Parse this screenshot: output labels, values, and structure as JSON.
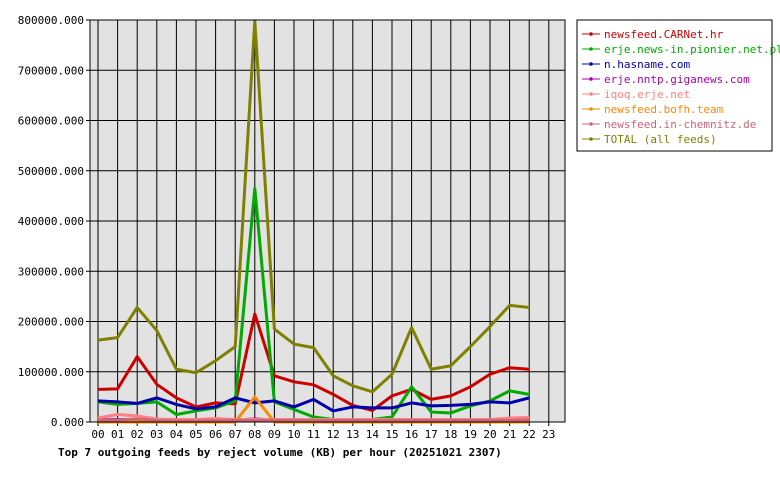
{
  "chart_data": {
    "type": "line",
    "caption": "Top 7 outgoing feeds by reject volume (KB) per hour (20251021 2307)",
    "categories": [
      "00",
      "01",
      "02",
      "03",
      "04",
      "05",
      "06",
      "07",
      "08",
      "09",
      "10",
      "11",
      "12",
      "13",
      "14",
      "15",
      "16",
      "17",
      "18",
      "19",
      "20",
      "21",
      "22",
      "23"
    ],
    "y_tick_labels": [
      "0.000",
      "100000.000",
      "200000.000",
      "300000.000",
      "400000.000",
      "500000.000",
      "600000.000",
      "700000.000",
      "800000.000"
    ],
    "ylim": [
      0,
      800000
    ],
    "grid": true,
    "legend_position": "right",
    "series": [
      {
        "name": "newsfeed.CARNet.hr",
        "color": "#cc0000",
        "values": [
          65000,
          66000,
          130000,
          75000,
          48000,
          30000,
          38000,
          36000,
          215000,
          92000,
          80000,
          74000,
          55000,
          33000,
          23000,
          52000,
          65000,
          45000,
          52000,
          70000,
          95000,
          108000,
          105000,
          null
        ]
      },
      {
        "name": "erje.news-in.pionier.net.pl",
        "color": "#00aa00",
        "values": [
          40000,
          35000,
          37000,
          40000,
          15000,
          22000,
          28000,
          42000,
          465000,
          40000,
          25000,
          10000,
          5000,
          5000,
          5000,
          10000,
          70000,
          20000,
          18000,
          32000,
          42000,
          62000,
          55000,
          null
        ]
      },
      {
        "name": "n.hasname.com",
        "color": "#0000aa",
        "values": [
          42000,
          40000,
          37000,
          48000,
          35000,
          26000,
          30000,
          48000,
          38000,
          42000,
          30000,
          45000,
          22000,
          30000,
          28000,
          28000,
          38000,
          32000,
          33000,
          35000,
          40000,
          38000,
          48000,
          null
        ]
      },
      {
        "name": "erje.nntp.giganews.com",
        "color": "#aa00aa",
        "values": [
          4000,
          5000,
          4000,
          4000,
          4000,
          4000,
          4000,
          4000,
          6000,
          4000,
          4000,
          4000,
          4000,
          4000,
          4000,
          4000,
          5000,
          4000,
          4000,
          4000,
          5000,
          5000,
          6000,
          null
        ]
      },
      {
        "name": "iqoq.erje.net",
        "color": "#ff8080",
        "values": [
          8000,
          15000,
          12000,
          6000,
          5000,
          5000,
          7000,
          5000,
          5000,
          5000,
          5000,
          5000,
          5000,
          5000,
          5000,
          5000,
          5000,
          5000,
          5000,
          5000,
          5000,
          8000,
          9000,
          null
        ]
      },
      {
        "name": "newsfeed.bofh.team",
        "color": "#ff8800",
        "values": [
          0,
          0,
          0,
          0,
          0,
          0,
          0,
          0,
          50000,
          0,
          0,
          0,
          0,
          0,
          0,
          0,
          0,
          0,
          0,
          0,
          0,
          0,
          0,
          null
        ]
      },
      {
        "name": "newsfeed.in-chemnitz.de",
        "color": "#cc6677",
        "values": [
          3000,
          4000,
          6000,
          3000,
          2000,
          2000,
          3000,
          3000,
          3000,
          3000,
          3000,
          3000,
          3000,
          3000,
          3000,
          3000,
          3000,
          3000,
          3000,
          3000,
          3000,
          3000,
          4000,
          null
        ]
      },
      {
        "name": "TOTAL (all feeds)",
        "color": "#808000",
        "values": [
          163000,
          168000,
          228000,
          182000,
          105000,
          98000,
          122000,
          150000,
          798000,
          185000,
          155000,
          148000,
          92000,
          72000,
          60000,
          95000,
          188000,
          105000,
          112000,
          150000,
          190000,
          232000,
          228000,
          null
        ]
      }
    ]
  }
}
